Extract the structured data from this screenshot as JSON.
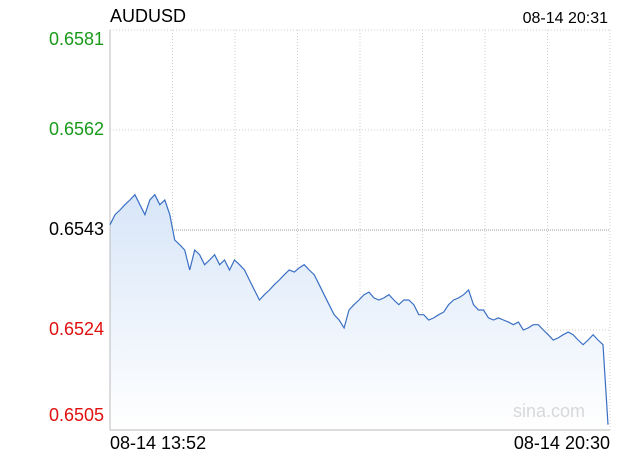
{
  "chart_data": {
    "type": "line",
    "title": "AUDUSD",
    "timestamp": "08-14 20:31",
    "watermark": "sina.com",
    "xlabels": [
      "08-14 13:52",
      "08-14 20:30"
    ],
    "series": [
      {
        "name": "AUDUSD",
        "color": "#3a6fc4",
        "fill": "#dce8f8",
        "values": [
          0.6544,
          0.65459,
          0.65468,
          0.65478,
          0.65487,
          0.65497,
          0.65478,
          0.65459,
          0.65487,
          0.65497,
          0.65478,
          0.65487,
          0.65459,
          0.65411,
          0.65402,
          0.65392,
          0.65354,
          0.65392,
          0.65383,
          0.65364,
          0.65373,
          0.65383,
          0.65364,
          0.65373,
          0.65354,
          0.65373,
          0.65364,
          0.65354,
          0.65335,
          0.65316,
          0.65297,
          0.65307,
          0.65316,
          0.65326,
          0.65335,
          0.65345,
          0.65354,
          0.6535,
          0.65358,
          0.65364,
          0.65354,
          0.65345,
          0.65326,
          0.65307,
          0.65288,
          0.65269,
          0.65259,
          0.65244,
          0.65278,
          0.65288,
          0.65297,
          0.65307,
          0.65312,
          0.65301,
          0.65297,
          0.65301,
          0.65307,
          0.65297,
          0.65288,
          0.65297,
          0.65297,
          0.65288,
          0.65269,
          0.65269,
          0.65259,
          0.65263,
          0.65269,
          0.65274,
          0.65288,
          0.65297,
          0.65301,
          0.65307,
          0.65316,
          0.65288,
          0.65278,
          0.65278,
          0.65263,
          0.65259,
          0.65263,
          0.65259,
          0.65255,
          0.6525,
          0.65255,
          0.6524,
          0.65244,
          0.6525,
          0.6525,
          0.6524,
          0.65231,
          0.65221,
          0.65225,
          0.65231,
          0.65236,
          0.65231,
          0.65221,
          0.65212,
          0.65221,
          0.65231,
          0.65221,
          0.65212,
          0.6506
        ]
      }
    ],
    "ylim": [
      0.6505,
      0.6581
    ],
    "yticks": [
      0.6581,
      0.6562,
      0.6543,
      0.6524,
      0.6505
    ],
    "ytick_colors": [
      "#1a9a1a",
      "#1a9a1a",
      "#000000",
      "#e01010",
      "#e01010"
    ],
    "grid": true
  }
}
